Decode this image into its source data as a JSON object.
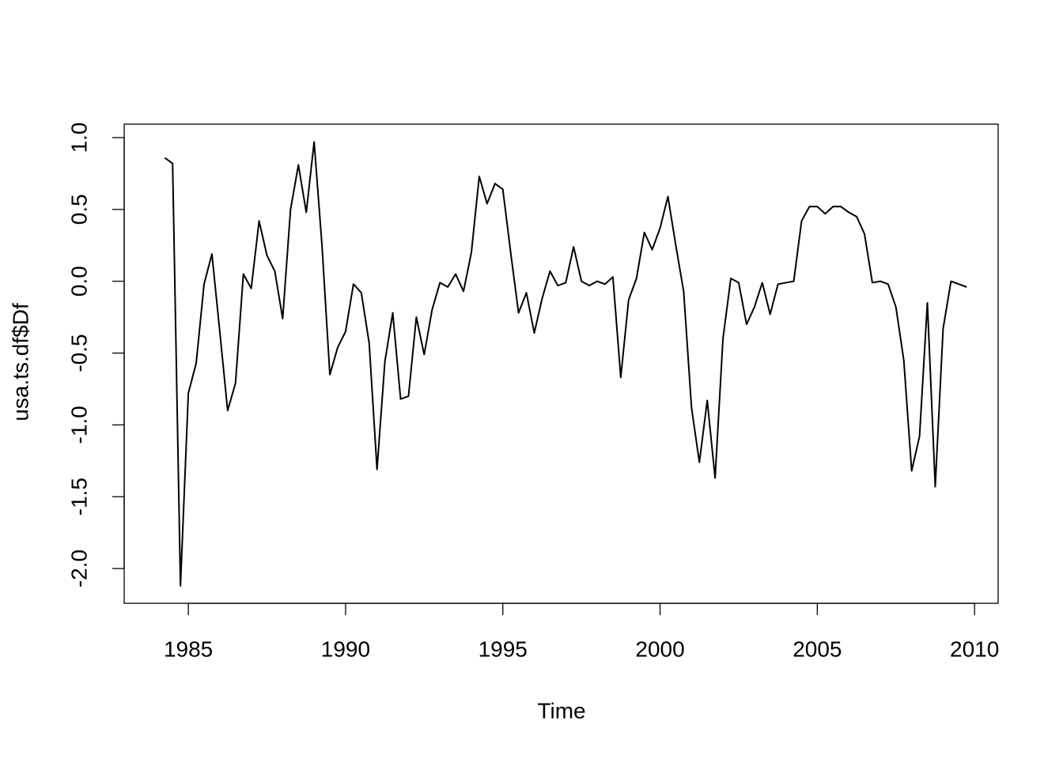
{
  "chart_data": {
    "type": "line",
    "x_label": "Time",
    "y_label": "usa.ts.df$Df",
    "color": "#000000",
    "x": [
      1984.25,
      1984.5,
      1984.75,
      1985,
      1985.25,
      1985.5,
      1985.75,
      1986,
      1986.25,
      1986.5,
      1986.75,
      1987,
      1987.25,
      1987.5,
      1987.75,
      1988,
      1988.25,
      1988.5,
      1988.75,
      1989,
      1989.25,
      1989.5,
      1989.75,
      1990,
      1990.25,
      1990.5,
      1990.75,
      1991,
      1991.25,
      1991.5,
      1991.75,
      1992,
      1992.25,
      1992.5,
      1992.75,
      1993,
      1993.25,
      1993.5,
      1993.75,
      1994,
      1994.25,
      1994.5,
      1994.75,
      1995,
      1995.25,
      1995.5,
      1995.75,
      1996,
      1996.25,
      1996.5,
      1996.75,
      1997,
      1997.25,
      1997.5,
      1997.75,
      1998,
      1998.25,
      1998.5,
      1998.75,
      1999,
      1999.25,
      1999.5,
      1999.75,
      2000,
      2000.25,
      2000.5,
      2000.75,
      2001,
      2001.25,
      2001.5,
      2001.75,
      2002,
      2002.25,
      2002.5,
      2002.75,
      2003,
      2003.25,
      2003.5,
      2003.75,
      2004,
      2004.25,
      2004.5,
      2004.75,
      2005,
      2005.25,
      2005.5,
      2005.75,
      2006,
      2006.25,
      2006.5,
      2006.75,
      2007,
      2007.25,
      2007.5,
      2007.75,
      2008,
      2008.25,
      2008.5,
      2008.75,
      2009,
      2009.25,
      2009.5,
      2009.75
    ],
    "values": [
      0.86,
      0.82,
      -2.12,
      -0.78,
      -0.57,
      -0.02,
      0.19,
      -0.35,
      -0.9,
      -0.71,
      0.05,
      -0.05,
      0.42,
      0.18,
      0.07,
      -0.26,
      0.5,
      0.81,
      0.48,
      0.97,
      0.25,
      -0.65,
      -0.46,
      -0.35,
      -0.02,
      -0.08,
      -0.43,
      -1.31,
      -0.56,
      -0.22,
      -0.82,
      -0.8,
      -0.25,
      -0.51,
      -0.2,
      -0.01,
      -0.04,
      0.05,
      -0.07,
      0.2,
      0.73,
      0.54,
      0.68,
      0.64,
      0.2,
      -0.22,
      -0.08,
      -0.36,
      -0.12,
      0.07,
      -0.03,
      -0.01,
      0.24,
      0,
      -0.03,
      0,
      -0.02,
      0.03,
      -0.67,
      -0.13,
      0.02,
      0.34,
      0.22,
      0.37,
      0.59,
      0.25,
      -0.07,
      -0.88,
      -1.26,
      -0.83,
      -1.37,
      -0.4,
      0.02,
      -0.01,
      -0.3,
      -0.18,
      -0.01,
      -0.23,
      -0.02,
      -0.01,
      0,
      0.42,
      0.52,
      0.52,
      0.47,
      0.52,
      0.52,
      0.48,
      0.45,
      0.33,
      -0.01,
      0,
      -0.02,
      -0.18,
      -0.55,
      -1.32,
      -1.08,
      -0.15,
      -1.43,
      -0.33,
      0,
      -0.02,
      -0.04
    ],
    "xlim": [
      1982.96,
      2010.75
    ],
    "ylim": [
      -2.242,
      1.094
    ],
    "xticks": [
      1985,
      1990,
      1995,
      2000,
      2005,
      2010
    ],
    "yticks": [
      {
        "value": -2,
        "label": "-2.0"
      },
      -1.5,
      {
        "value": -1,
        "label": "-1.0"
      },
      -0.5,
      {
        "value": 0,
        "label": "0.0"
      },
      0.5,
      {
        "value": 1,
        "label": "1.0"
      }
    ]
  }
}
